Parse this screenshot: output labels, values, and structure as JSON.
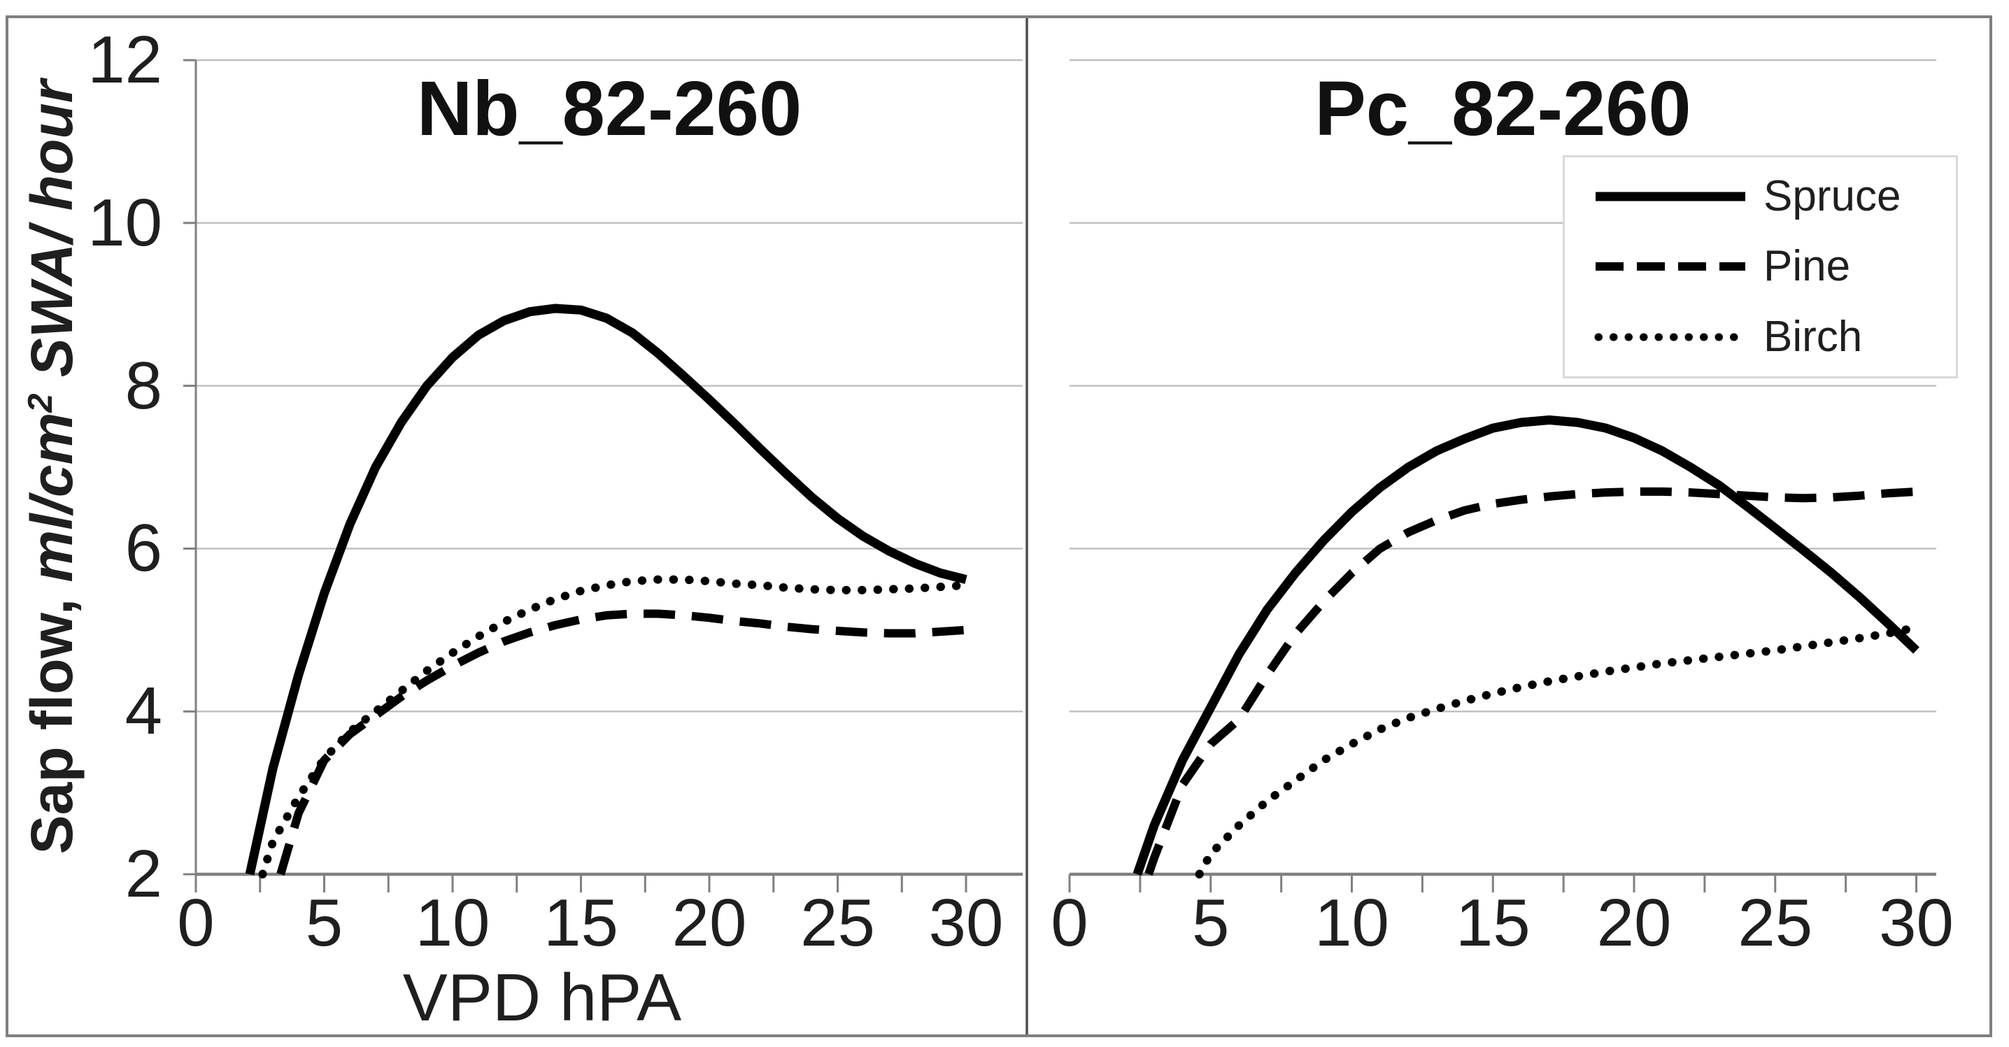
{
  "figure": {
    "border_color": "#7f7f7f",
    "divider_color": "#4d4d4d",
    "background": "#ffffff",
    "y_axis": {
      "label_regular": "Sap flow, ",
      "label_units_pre": "ml/cm",
      "label_sup": "2",
      "label_units_post": " SWA/ hour",
      "ticks": [
        12,
        10,
        8,
        6,
        4,
        2
      ]
    },
    "x_axis": {
      "label": "VPD hPA",
      "ticks": [
        0,
        5,
        10,
        15,
        20,
        25,
        30
      ],
      "minor_step": 2.5
    },
    "legend": {
      "position": "top-right",
      "items": [
        {
          "label": "Spruce",
          "style": "solid"
        },
        {
          "label": "Pine",
          "style": "dashed"
        },
        {
          "label": "Birch",
          "style": "dotted"
        }
      ]
    },
    "colors": {
      "curve": "#000000",
      "gridline": "#c0c0c0",
      "axis": "#808080",
      "text": "#1f1f1f"
    }
  },
  "chart_data": [
    {
      "type": "line",
      "title": "Nb_82-260",
      "xlabel": "VPD hPA",
      "ylabel": "Sap flow, ml/cm2 SWA/ hour",
      "xlim": [
        0,
        30
      ],
      "ylim": [
        2,
        12
      ],
      "x_ticks": [
        0,
        5,
        10,
        15,
        20,
        25,
        30
      ],
      "y_ticks": [
        2,
        4,
        6,
        8,
        10,
        12
      ],
      "grid": "horizontal",
      "legend_position": "none",
      "series": [
        {
          "name": "Spruce",
          "line_style": "solid",
          "points": [
            [
              2.1,
              2.0
            ],
            [
              3,
              3.3
            ],
            [
              4,
              4.45
            ],
            [
              5,
              5.45
            ],
            [
              6,
              6.3
            ],
            [
              7,
              7.0
            ],
            [
              8,
              7.55
            ],
            [
              9,
              8.0
            ],
            [
              10,
              8.35
            ],
            [
              11,
              8.62
            ],
            [
              12,
              8.8
            ],
            [
              13,
              8.91
            ],
            [
              14,
              8.95
            ],
            [
              15,
              8.93
            ],
            [
              16,
              8.83
            ],
            [
              17,
              8.65
            ],
            [
              18,
              8.4
            ],
            [
              19,
              8.12
            ],
            [
              20,
              7.83
            ],
            [
              21,
              7.53
            ],
            [
              22,
              7.22
            ],
            [
              23,
              6.92
            ],
            [
              24,
              6.63
            ],
            [
              25,
              6.37
            ],
            [
              26,
              6.15
            ],
            [
              27,
              5.97
            ],
            [
              28,
              5.82
            ],
            [
              29,
              5.7
            ],
            [
              30,
              5.62
            ]
          ]
        },
        {
          "name": "Pine",
          "line_style": "dashed",
          "points": [
            [
              3.3,
              2.0
            ],
            [
              4,
              2.75
            ],
            [
              5,
              3.4
            ],
            [
              6,
              3.72
            ],
            [
              7,
              3.95
            ],
            [
              8,
              4.18
            ],
            [
              9,
              4.38
            ],
            [
              10,
              4.56
            ],
            [
              11,
              4.72
            ],
            [
              12,
              4.86
            ],
            [
              13,
              4.97
            ],
            [
              14,
              5.06
            ],
            [
              15,
              5.13
            ],
            [
              16,
              5.18
            ],
            [
              17,
              5.2
            ],
            [
              18,
              5.2
            ],
            [
              19,
              5.18
            ],
            [
              20,
              5.15
            ],
            [
              21,
              5.11
            ],
            [
              22,
              5.08
            ],
            [
              23,
              5.04
            ],
            [
              24,
              5.01
            ],
            [
              25,
              4.99
            ],
            [
              26,
              4.97
            ],
            [
              27,
              4.96
            ],
            [
              28,
              4.96
            ],
            [
              29,
              4.98
            ],
            [
              30,
              5.0
            ]
          ]
        },
        {
          "name": "Birch",
          "line_style": "dotted",
          "points": [
            [
              2.6,
              2.0
            ],
            [
              3,
              2.4
            ],
            [
              4,
              2.95
            ],
            [
              5,
              3.42
            ],
            [
              6,
              3.75
            ],
            [
              7,
              4.0
            ],
            [
              8,
              4.25
            ],
            [
              9,
              4.5
            ],
            [
              10,
              4.72
            ],
            [
              11,
              4.92
            ],
            [
              12,
              5.1
            ],
            [
              13,
              5.25
            ],
            [
              14,
              5.38
            ],
            [
              15,
              5.48
            ],
            [
              16,
              5.55
            ],
            [
              17,
              5.6
            ],
            [
              18,
              5.62
            ],
            [
              19,
              5.62
            ],
            [
              20,
              5.6
            ],
            [
              21,
              5.57
            ],
            [
              22,
              5.55
            ],
            [
              23,
              5.52
            ],
            [
              24,
              5.5
            ],
            [
              25,
              5.49
            ],
            [
              26,
              5.49
            ],
            [
              27,
              5.5
            ],
            [
              28,
              5.51
            ],
            [
              29,
              5.53
            ],
            [
              30,
              5.55
            ]
          ]
        }
      ]
    },
    {
      "type": "line",
      "title": "Pc_82-260",
      "xlabel": "",
      "ylabel": "",
      "xlim": [
        0,
        30
      ],
      "ylim": [
        2,
        12
      ],
      "x_ticks": [
        0,
        5,
        10,
        15,
        20,
        25,
        30
      ],
      "y_ticks": [
        2,
        4,
        6,
        8,
        10,
        12
      ],
      "grid": "horizontal",
      "legend_position": "top-right",
      "series": [
        {
          "name": "Spruce",
          "line_style": "solid",
          "points": [
            [
              2.4,
              2.0
            ],
            [
              3,
              2.6
            ],
            [
              4,
              3.4
            ],
            [
              5,
              4.05
            ],
            [
              6,
              4.7
            ],
            [
              7,
              5.25
            ],
            [
              8,
              5.7
            ],
            [
              9,
              6.1
            ],
            [
              10,
              6.45
            ],
            [
              11,
              6.75
            ],
            [
              12,
              7.0
            ],
            [
              13,
              7.2
            ],
            [
              14,
              7.35
            ],
            [
              15,
              7.48
            ],
            [
              16,
              7.55
            ],
            [
              17,
              7.58
            ],
            [
              18,
              7.55
            ],
            [
              19,
              7.48
            ],
            [
              20,
              7.36
            ],
            [
              21,
              7.2
            ],
            [
              22,
              7.0
            ],
            [
              23,
              6.78
            ],
            [
              24,
              6.52
            ],
            [
              25,
              6.25
            ],
            [
              26,
              5.98
            ],
            [
              27,
              5.7
            ],
            [
              28,
              5.4
            ],
            [
              29,
              5.08
            ],
            [
              30,
              4.75
            ]
          ]
        },
        {
          "name": "Pine",
          "line_style": "dashed",
          "points": [
            [
              2.8,
              2.0
            ],
            [
              3,
              2.2
            ],
            [
              4,
              3.1
            ],
            [
              5,
              3.6
            ],
            [
              6,
              3.9
            ],
            [
              7,
              4.45
            ],
            [
              8,
              4.95
            ],
            [
              9,
              5.35
            ],
            [
              10,
              5.7
            ],
            [
              11,
              6.0
            ],
            [
              12,
              6.2
            ],
            [
              13,
              6.35
            ],
            [
              14,
              6.47
            ],
            [
              15,
              6.55
            ],
            [
              16,
              6.6
            ],
            [
              17,
              6.64
            ],
            [
              18,
              6.67
            ],
            [
              19,
              6.69
            ],
            [
              20,
              6.7
            ],
            [
              21,
              6.7
            ],
            [
              22,
              6.69
            ],
            [
              23,
              6.67
            ],
            [
              24,
              6.65
            ],
            [
              25,
              6.63
            ],
            [
              26,
              6.62
            ],
            [
              27,
              6.63
            ],
            [
              28,
              6.65
            ],
            [
              29,
              6.68
            ],
            [
              30,
              6.7
            ]
          ]
        },
        {
          "name": "Birch",
          "line_style": "dotted",
          "points": [
            [
              4.6,
              2.0
            ],
            [
              5,
              2.25
            ],
            [
              6,
              2.6
            ],
            [
              7,
              2.9
            ],
            [
              8,
              3.15
            ],
            [
              9,
              3.4
            ],
            [
              10,
              3.6
            ],
            [
              11,
              3.78
            ],
            [
              12,
              3.92
            ],
            [
              13,
              4.03
            ],
            [
              14,
              4.13
            ],
            [
              15,
              4.22
            ],
            [
              16,
              4.3
            ],
            [
              17,
              4.37
            ],
            [
              18,
              4.43
            ],
            [
              19,
              4.49
            ],
            [
              20,
              4.54
            ],
            [
              21,
              4.59
            ],
            [
              22,
              4.63
            ],
            [
              23,
              4.67
            ],
            [
              24,
              4.71
            ],
            [
              25,
              4.75
            ],
            [
              26,
              4.8
            ],
            [
              27,
              4.85
            ],
            [
              28,
              4.9
            ],
            [
              29,
              4.96
            ],
            [
              30,
              5.03
            ]
          ]
        }
      ]
    }
  ]
}
